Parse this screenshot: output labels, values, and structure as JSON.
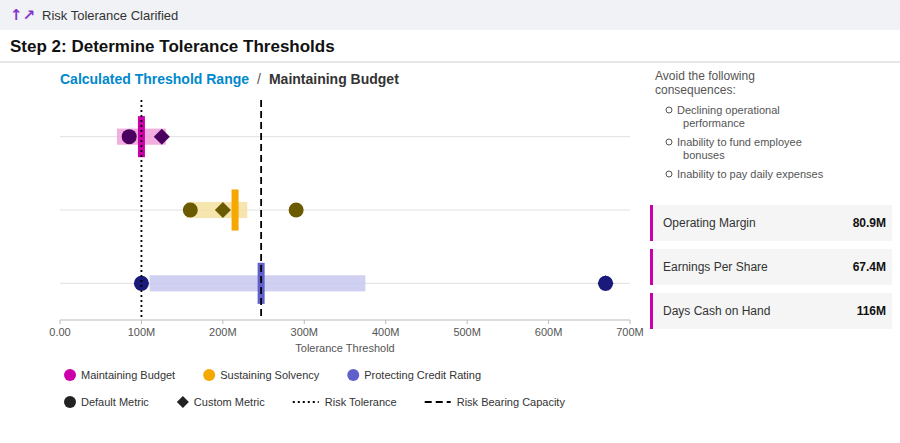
{
  "chart_data": {
    "type": "range",
    "orientation": "horizontal",
    "header_icon": "↑↗",
    "header": "Risk Tolerance Clarified",
    "title": "Step 2: Determine Tolerance Thresholds",
    "subtitle": "Calculated Threshold Range",
    "subtitle_separator": "/",
    "subtitle_right": "Maintaining Budget",
    "xlabel": "Tolerance Threshold",
    "xlim": [
      0,
      700
    ],
    "xticks": [
      {
        "value": 0,
        "label": "0.00"
      },
      {
        "value": 100,
        "label": "100M"
      },
      {
        "value": 200,
        "label": "200M"
      },
      {
        "value": 300,
        "label": "300M"
      },
      {
        "value": 400,
        "label": "400M"
      },
      {
        "value": 500,
        "label": "500M"
      },
      {
        "value": 600,
        "label": "600M"
      },
      {
        "value": 700,
        "label": "700M"
      }
    ],
    "grid": true,
    "tick_labels": "x",
    "categories": [
      "Maintaining Budget",
      "Sustaining Solvency",
      "Protecting Credit Rating"
    ],
    "colors": [
      "#cc00aa",
      "#f5a800",
      "#6060cc"
    ],
    "ranges": {
      "start": [
        70,
        155,
        110
      ],
      "width": [
        60,
        75,
        265
      ],
      "colors": [
        "#f0a0d8",
        "#f5e0a0",
        "#c8c8f0"
      ]
    },
    "thresholds": {
      "values": [
        100,
        215,
        247
      ],
      "colors": [
        "#cc00aa",
        "#f5a800",
        "#6060cc"
      ]
    },
    "series": [
      {
        "name": "Default Metric",
        "marker": "circle",
        "color": "#222222",
        "colors": [
          "#4b0060",
          "#6b5a00",
          "#1a1a7a"
        ],
        "values": [
          85,
          160,
          100
        ]
      },
      {
        "name": "Custom Metric",
        "marker": "diamond",
        "color": "#222222",
        "colors": [
          "#4b0060",
          "#6b5a00",
          "#1a1a7a"
        ],
        "values": [
          125,
          200,
          670
        ]
      },
      {
        "marker": "circle",
        "colors": [
          "#4b0060",
          "#6b5a00",
          "#1a1a7a"
        ],
        "values": [
          null,
          290,
          670
        ]
      }
    ],
    "lines": [
      {
        "name": "Risk Tolerance",
        "value": 100,
        "line_style": "dotted",
        "color": "#000000"
      },
      {
        "name": "Risk Bearing Capacity",
        "value": 247,
        "line_style": "dashed",
        "color": "#000000"
      }
    ],
    "consequences_title": "Avoid the following\nconsequences:",
    "consequences": [
      "Declining operational\n  performance",
      "Inability to fund employee\n  bonuses",
      "Inability to pay daily expenses"
    ],
    "metrics_color": "#cc00aa",
    "metrics": [
      {
        "label": "Operating Margin",
        "value": "80.9M"
      },
      {
        "label": "Earnings Per Share",
        "value": "67.4M"
      },
      {
        "label": "Days Cash on Hand",
        "value": "116M"
      }
    ]
  }
}
